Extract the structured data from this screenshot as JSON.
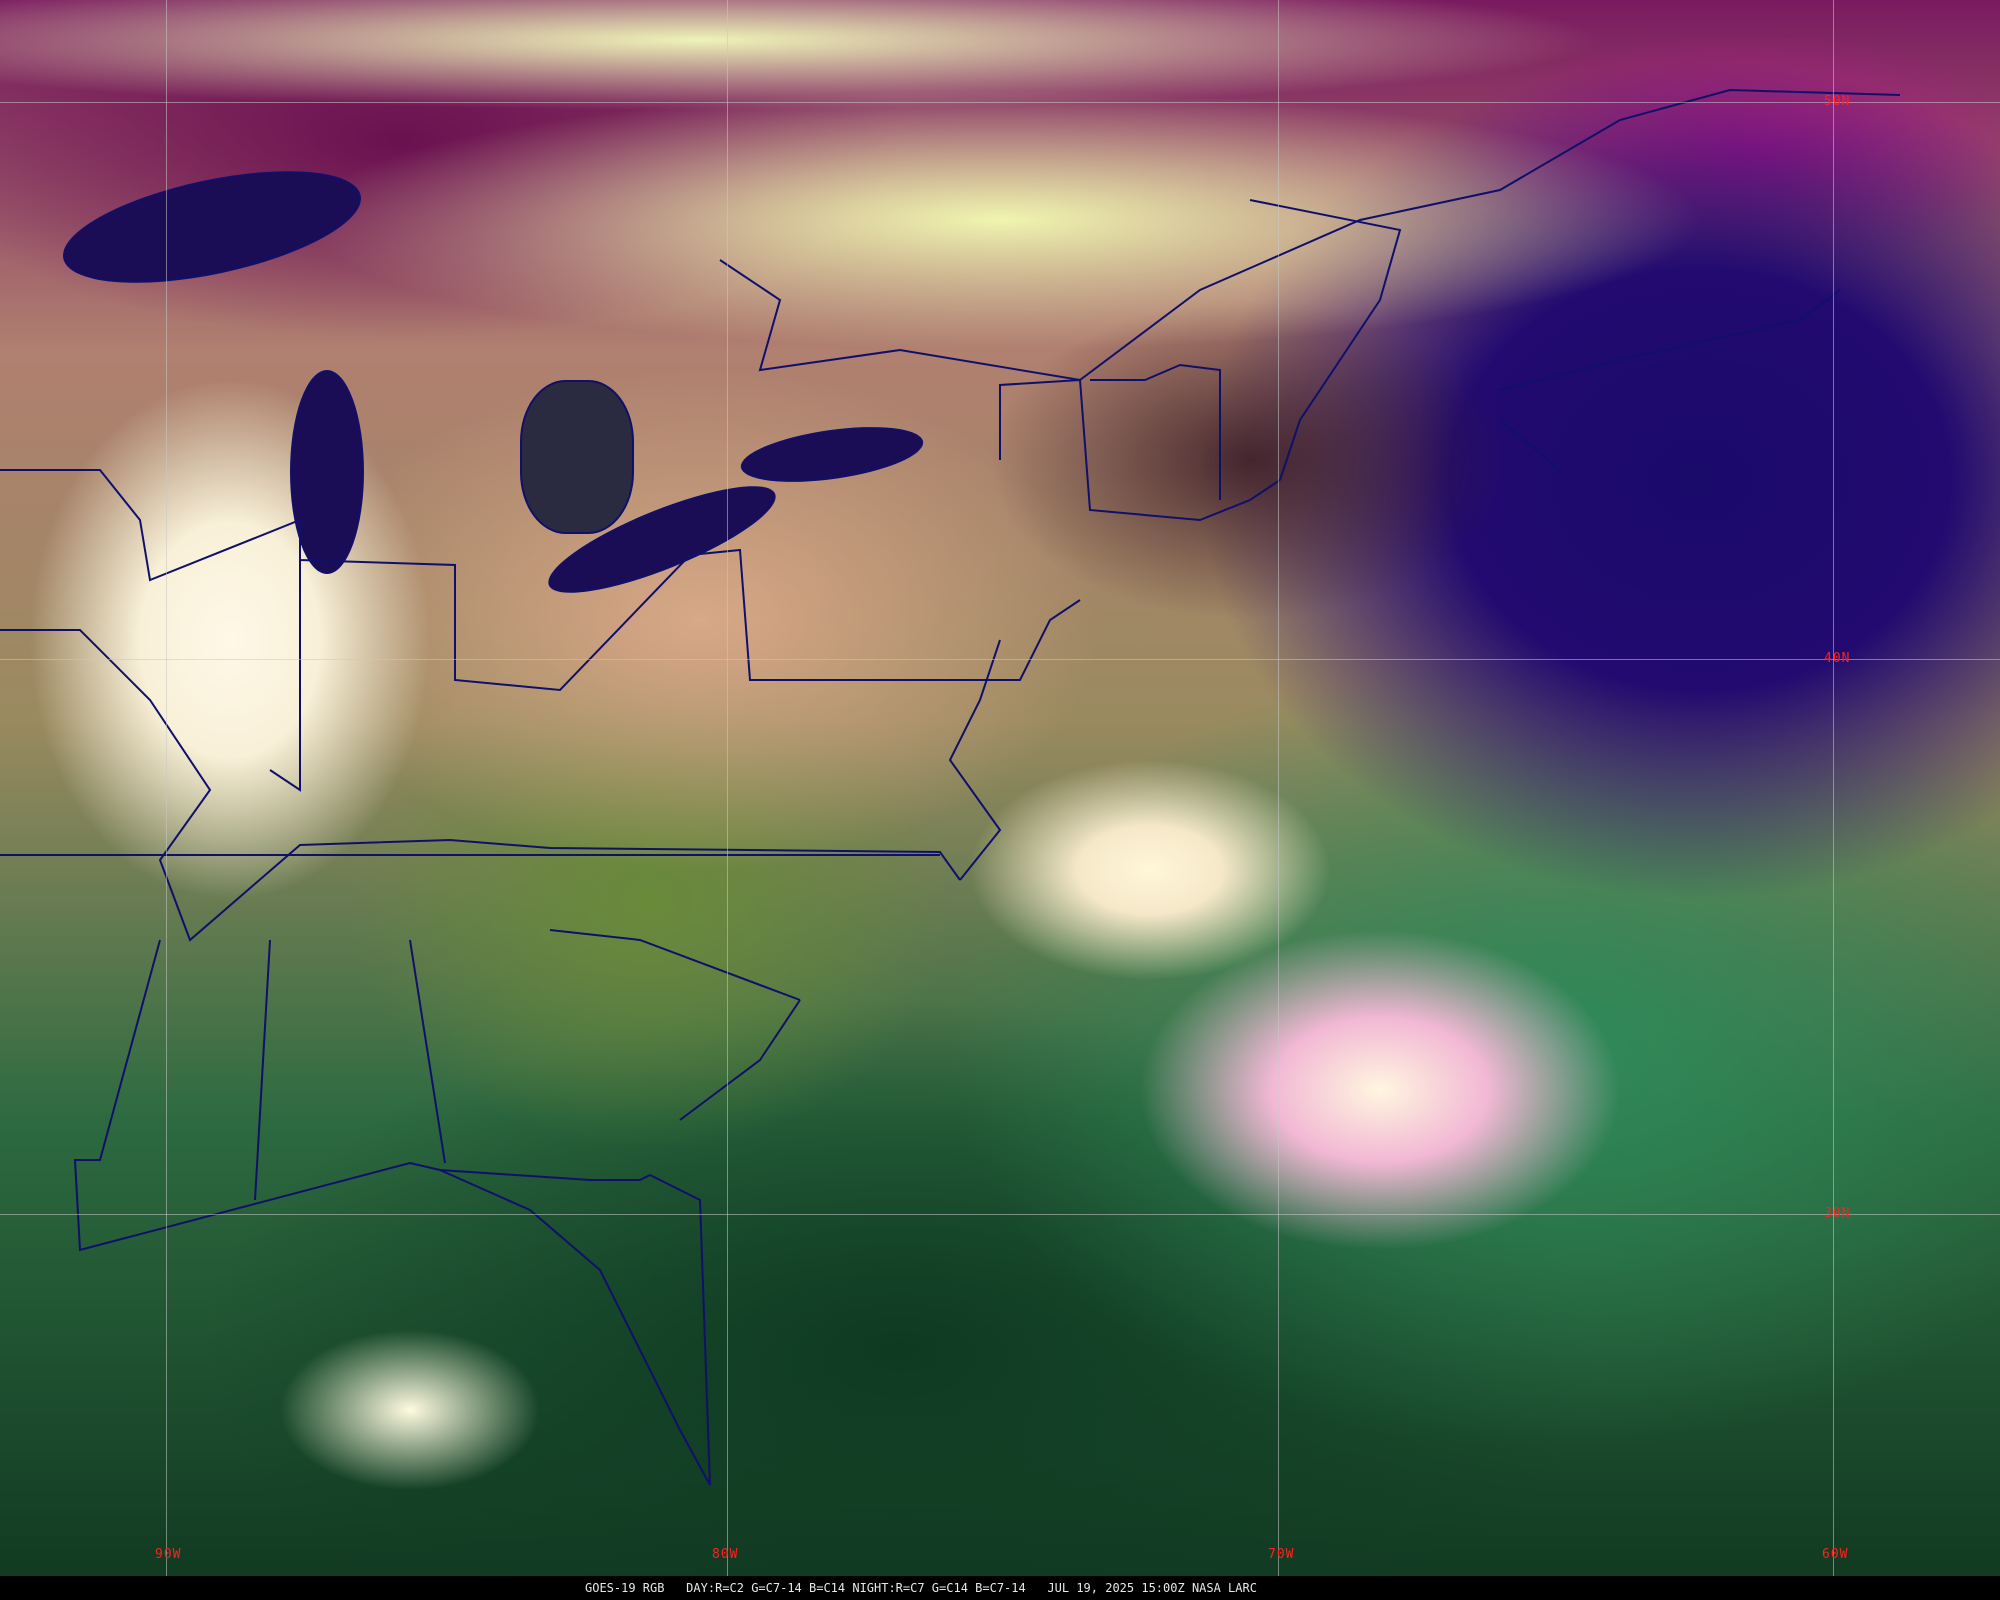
{
  "imagery": {
    "satellite": "GOES-19",
    "product": "RGB",
    "colors": {
      "ocean_night": "#1a0a6a",
      "vegetation": "#5a8a3a",
      "cloud": "#f5f0c8",
      "grid_label": "#ff2020",
      "border": "#10106a"
    }
  },
  "grid": {
    "longitude_labels": [
      "90W",
      "80W",
      "70W",
      "60W"
    ],
    "latitude_labels": [
      "50N",
      "40N",
      "30N"
    ]
  },
  "caption": {
    "satellite": "GOES-19 RGB",
    "recipe": "DAY:R=C2 G=C7-14 B=C14 NIGHT:R=C7 G=C14 B=C7-14",
    "datetime": "JUL 19, 2025 15:00Z",
    "source": "NASA LARC"
  }
}
